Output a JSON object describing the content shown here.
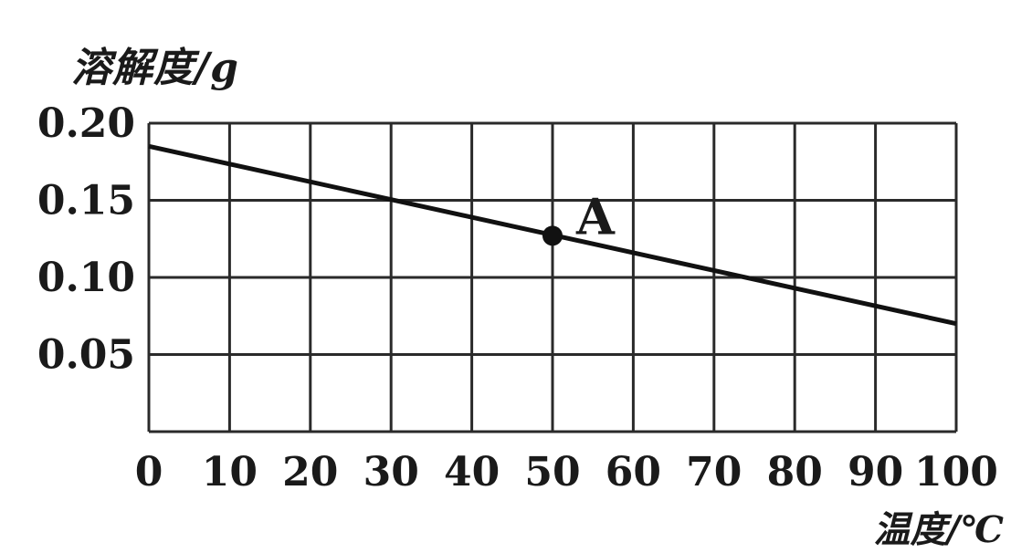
{
  "chart_data": {
    "type": "line",
    "ylabel": "溶解度/g",
    "xlabel": "温度/℃",
    "x_ticks": [
      "0",
      "10",
      "20",
      "30",
      "40",
      "50",
      "60",
      "70",
      "80",
      "90",
      "100"
    ],
    "y_ticks": [
      "0.05",
      "0.10",
      "0.15",
      "0.20"
    ],
    "xlim": [
      0,
      100
    ],
    "ylim": [
      0,
      0.2
    ],
    "grid": true,
    "series": [
      {
        "x": [
          0,
          100
        ],
        "y": [
          0.185,
          0.07
        ]
      }
    ],
    "points": [
      {
        "label": "A",
        "x": 50,
        "y": 0.127
      }
    ]
  }
}
